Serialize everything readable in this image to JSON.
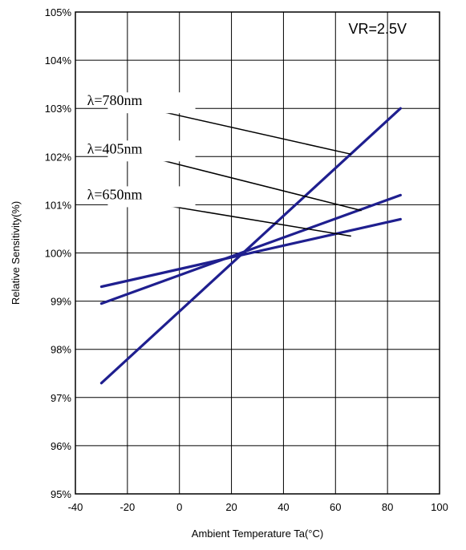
{
  "chart_data": {
    "type": "line",
    "xlabel": "Ambient Temperature Ta(°C)",
    "ylabel": "Relative Sensitivity(%)",
    "xlim": [
      -40,
      100
    ],
    "ylim": [
      95,
      105
    ],
    "x_ticks": [
      -40,
      -20,
      0,
      20,
      40,
      60,
      80,
      100
    ],
    "y_ticks": [
      95,
      96,
      97,
      98,
      99,
      100,
      101,
      102,
      103,
      104,
      105
    ],
    "x_tick_labels": [
      "-40",
      "-20",
      "0",
      "20",
      "40",
      "60",
      "80",
      "100"
    ],
    "y_tick_labels": [
      "95%",
      "96%",
      "97%",
      "98%",
      "99%",
      "100%",
      "101%",
      "102%",
      "103%",
      "104%",
      "105%"
    ],
    "grid": true,
    "line_color": "#1f1f8f",
    "annotation": "VR=2.5V",
    "series": [
      {
        "name": "λ=780nm",
        "x": [
          -30,
          85
        ],
        "y": [
          97.3,
          103.0
        ],
        "label_at": [
          -13,
          103.0
        ],
        "pointer_to": [
          66,
          102.05
        ]
      },
      {
        "name": "λ=405nm",
        "x": [
          -30,
          85
        ],
        "y": [
          98.95,
          101.2
        ],
        "label_at": [
          -13,
          102.0
        ],
        "pointer_to": [
          70,
          100.88
        ]
      },
      {
        "name": "λ=650nm",
        "x": [
          -30,
          85
        ],
        "y": [
          99.3,
          100.7
        ],
        "label_at": [
          -13,
          101.05
        ],
        "pointer_to": [
          66,
          100.35
        ]
      }
    ]
  }
}
